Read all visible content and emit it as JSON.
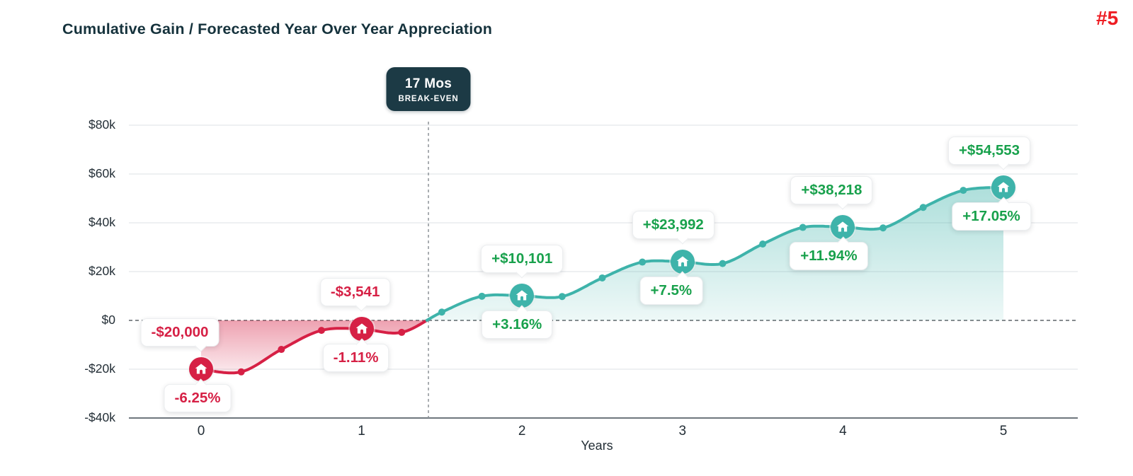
{
  "header": {
    "title": "Cumulative Gain / Forecasted Year Over Year Appreciation",
    "figure_number": "#5"
  },
  "breakeven": {
    "months": 17,
    "months_label": "17 Mos",
    "caption": "BREAK-EVEN"
  },
  "chart_data": {
    "type": "area",
    "title": "Cumulative Gain / Forecasted Year Over Year Appreciation",
    "xlabel": "Years",
    "ylabel": "",
    "xlim": [
      -0.45,
      5.45
    ],
    "ylim": [
      -40000,
      80000
    ],
    "grid": true,
    "legend": "none",
    "x": [
      0,
      0.25,
      0.5,
      0.75,
      1,
      1.25,
      1.5,
      1.75,
      2,
      2.25,
      2.5,
      2.75,
      3,
      3.25,
      3.5,
      3.75,
      4,
      4.25,
      4.5,
      4.75,
      5
    ],
    "values": [
      -20000,
      -21100,
      -11900,
      -4100,
      -3541,
      -4900,
      3400,
      9900,
      10101,
      9800,
      17400,
      23900,
      23992,
      23300,
      31300,
      38100,
      38218,
      37900,
      46300,
      53300,
      54553
    ],
    "x_ticks": [
      "0",
      "1",
      "2",
      "3",
      "4",
      "5"
    ],
    "y_ticks": [
      {
        "label": "$80k",
        "value": 80000
      },
      {
        "label": "$60k",
        "value": 60000
      },
      {
        "label": "$40k",
        "value": 40000
      },
      {
        "label": "$20k",
        "value": 20000
      },
      {
        "label": "$0",
        "value": 0
      },
      {
        "label": "-$20k",
        "value": -20000
      },
      {
        "label": "-$40k",
        "value": -40000
      }
    ],
    "breakeven_x_years": 1.4167,
    "annotations": [
      {
        "year": 0,
        "gain": -20000,
        "gain_label": "-$20,000",
        "yoy_label": "-6.25%",
        "direction": "negative"
      },
      {
        "year": 1,
        "gain": -3541,
        "gain_label": "-$3,541",
        "yoy_label": "-1.11%",
        "direction": "negative"
      },
      {
        "year": 2,
        "gain": 10101,
        "gain_label": "+$10,101",
        "yoy_label": "+3.16%",
        "direction": "positive"
      },
      {
        "year": 3,
        "gain": 23992,
        "gain_label": "+$23,992",
        "yoy_label": "+7.5%",
        "direction": "positive"
      },
      {
        "year": 4,
        "gain": 38218,
        "gain_label": "+$38,218",
        "yoy_label": "+11.94%",
        "direction": "positive"
      },
      {
        "year": 5,
        "gain": 54553,
        "gain_label": "+$54,553",
        "yoy_label": "+17.05%",
        "direction": "positive"
      }
    ],
    "colors": {
      "negative": "#d62045",
      "positive": "#3eb3aa",
      "negative_text": "#d62045",
      "positive_text": "#18a14c",
      "badge_bg": "#1c3a45",
      "figure_number": "#ee1d23",
      "grid": "#e9ebee",
      "axis_line": "#6f767d",
      "zero_dash": "#5f6468"
    }
  }
}
